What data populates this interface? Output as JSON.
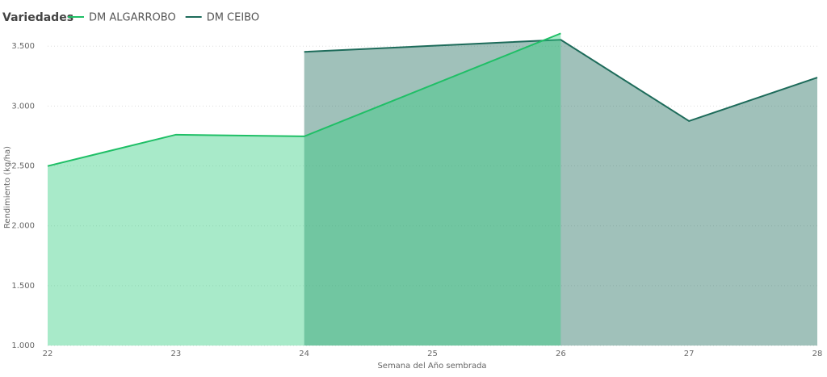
{
  "chart_data": {
    "type": "area",
    "legend_title": "Variedades",
    "x_label": "Semana del Año sembrada",
    "y_label": "Rendimiento (kg/ha)",
    "xlim": [
      22,
      28
    ],
    "xticks": [
      22,
      23,
      24,
      25,
      26,
      27,
      28
    ],
    "ylim": [
      1000,
      3650
    ],
    "yticks": [
      {
        "value": 1000,
        "label": "1.000"
      },
      {
        "value": 1500,
        "label": "1.500"
      },
      {
        "value": 2000,
        "label": "2.000"
      },
      {
        "value": 2500,
        "label": "2.500"
      },
      {
        "value": 3000,
        "label": "3.000"
      },
      {
        "value": 3500,
        "label": "3.500"
      }
    ],
    "grid": true,
    "series": [
      {
        "name": "DM ALGARROBO",
        "color": "#1fbf66",
        "fill": "#2fcc7f",
        "x": [
          22,
          23,
          24,
          26
        ],
        "values": [
          2499,
          2761,
          2747,
          3607
        ]
      },
      {
        "name": "DM CEIBO",
        "color": "#1d6b5a",
        "fill": "#1d6b5a",
        "x": [
          24,
          26,
          27,
          28
        ],
        "values": [
          3453,
          3554,
          2875,
          3238
        ]
      }
    ]
  }
}
